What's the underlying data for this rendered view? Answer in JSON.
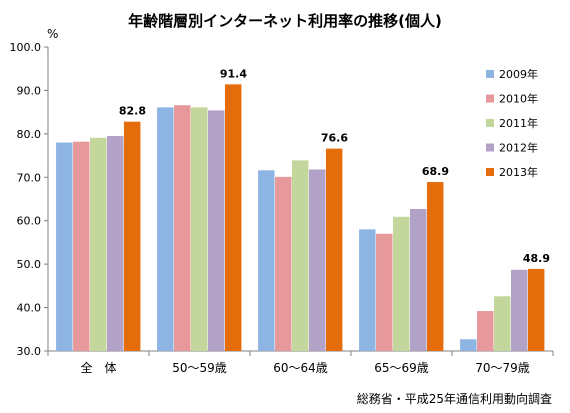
{
  "chart_data": {
    "type": "bar",
    "title": "年齢階層別インターネット利用率の推移(個人)",
    "unit": "%",
    "source": "総務省・平成25年通信利用動向調査",
    "ylim": [
      30,
      100
    ],
    "yticks": [
      "30.0",
      "40.0",
      "50.0",
      "60.0",
      "70.0",
      "80.0",
      "90.0",
      "100.0"
    ],
    "categories": [
      "全　体",
      "50～59歳",
      "60～64歳",
      "65～69歳",
      "70～79歳"
    ],
    "series": [
      {
        "name": "2009年",
        "color": "#8EB4E3",
        "values": [
          78.0,
          86.1,
          71.6,
          58.0,
          32.7
        ]
      },
      {
        "name": "2010年",
        "color": "#E6989A",
        "values": [
          78.2,
          86.6,
          70.1,
          57.0,
          39.2
        ]
      },
      {
        "name": "2011年",
        "color": "#C3D69B",
        "values": [
          79.1,
          86.1,
          73.9,
          60.9,
          42.6
        ]
      },
      {
        "name": "2012年",
        "color": "#B3A2C7",
        "values": [
          79.5,
          85.4,
          71.8,
          62.7,
          48.7
        ]
      },
      {
        "name": "2013年",
        "color": "#E46C0A",
        "values": [
          82.8,
          91.4,
          76.6,
          68.9,
          48.9
        ]
      }
    ],
    "data_labels": [
      "82.8",
      "91.4",
      "76.6",
      "68.9",
      "48.9"
    ],
    "legend_position": "right",
    "grid": false
  }
}
